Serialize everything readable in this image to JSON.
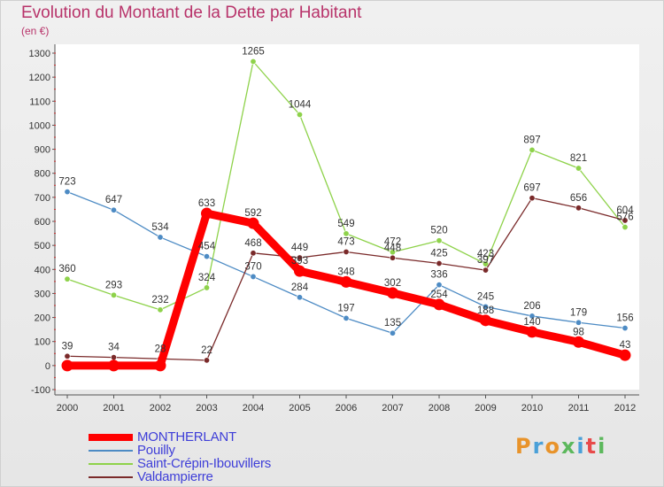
{
  "chart_data": {
    "type": "line",
    "title": "Evolution du Montant de la Dette par Habitant",
    "unit": "(en €)",
    "x": [
      "2000",
      "2001",
      "2002",
      "2003",
      "2004",
      "2005",
      "2006",
      "2007",
      "2008",
      "2009",
      "2010",
      "2011",
      "2012"
    ],
    "ylim": [
      -100,
      1300
    ],
    "yticks": [
      -100,
      0,
      100,
      200,
      300,
      400,
      500,
      600,
      700,
      800,
      900,
      1000,
      1100,
      1200,
      1300
    ],
    "grid": false,
    "legend_position": "bottom-left",
    "series": [
      {
        "name": "MONTHERLANT",
        "color": "#ff0000",
        "values": [
          0,
          0,
          0,
          633,
          592,
          393,
          348,
          302,
          254,
          188,
          140,
          98,
          43
        ],
        "labels": [
          "",
          "",
          "",
          "633",
          "592",
          "393",
          "348",
          "302",
          "254",
          "188",
          "140",
          "98",
          "43"
        ]
      },
      {
        "name": "Pouilly",
        "color": "#4d8bc4",
        "values": [
          723,
          647,
          534,
          454,
          370,
          284,
          197,
          135,
          336,
          245,
          206,
          179,
          156
        ],
        "labels": [
          "723",
          "647",
          "534",
          "454",
          "370",
          "284",
          "197",
          "135",
          "336",
          "245",
          "206",
          "179",
          "156"
        ]
      },
      {
        "name": "Saint-Crépin-Ibouvillers",
        "color": "#8ed24a",
        "values": [
          360,
          293,
          232,
          324,
          1265,
          1044,
          549,
          472,
          520,
          423,
          897,
          821,
          576
        ],
        "labels": [
          "360",
          "293",
          "232",
          "324",
          "1265",
          "1044",
          "549",
          "472",
          "520",
          "423",
          "897",
          "821",
          "576"
        ]
      },
      {
        "name": "Valdampierre",
        "color": "#7a2a2a",
        "values": [
          39,
          34,
          28,
          22,
          468,
          449,
          473,
          448,
          425,
          397,
          697,
          656,
          604
        ],
        "labels": [
          "39",
          "34",
          "28",
          "22",
          "468",
          "449",
          "473",
          "448",
          "425",
          "397",
          "697",
          "656",
          "604"
        ]
      }
    ]
  },
  "logo": {
    "text": "Proxiti",
    "colors": [
      "#e8932a",
      "#4aa0d8",
      "#e8932a",
      "#5cb85c",
      "#4aa0d8",
      "#e84a4a",
      "#5cb85c"
    ]
  }
}
